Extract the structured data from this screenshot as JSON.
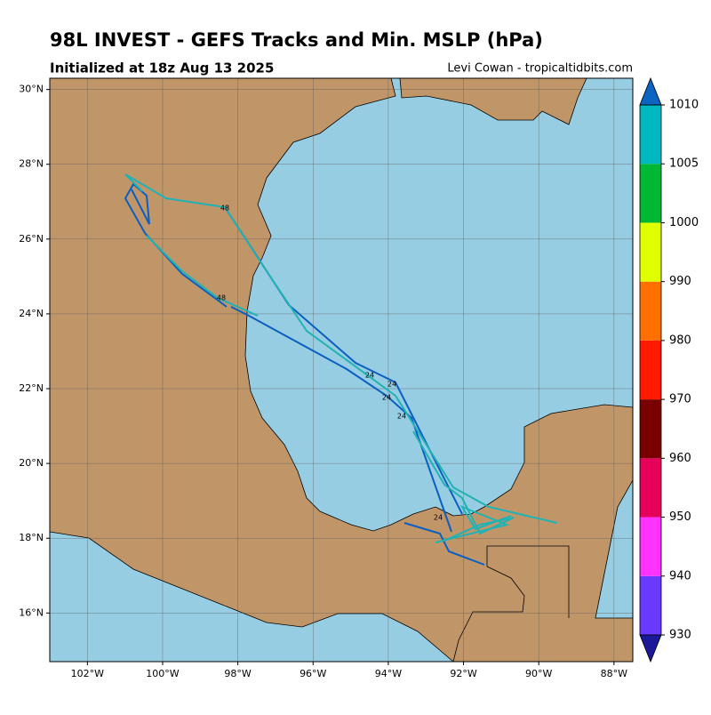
{
  "header": {
    "title": "98L INVEST - GEFS Tracks and Min. MSLP (hPa)",
    "subtitle": "Initialized at 18z Aug 13 2025",
    "credit": "Levi Cowan - tropicaltidbits.com"
  },
  "map": {
    "lonlim": [
      -103,
      -87.5
    ],
    "latlim": [
      14.7,
      30.3
    ],
    "lon_ticks": [
      {
        "value": -102,
        "label": "102°W"
      },
      {
        "value": -100,
        "label": "100°W"
      },
      {
        "value": -98,
        "label": "98°W"
      },
      {
        "value": -96,
        "label": "96°W"
      },
      {
        "value": -94,
        "label": "94°W"
      },
      {
        "value": -92,
        "label": "92°W"
      },
      {
        "value": -90,
        "label": "90°W"
      },
      {
        "value": -88,
        "label": "88°W"
      }
    ],
    "lat_ticks": [
      {
        "value": 16,
        "label": "16°N"
      },
      {
        "value": 18,
        "label": "18°N"
      },
      {
        "value": 20,
        "label": "20°N"
      },
      {
        "value": 22,
        "label": "22°N"
      },
      {
        "value": 24,
        "label": "24°N"
      },
      {
        "value": 26,
        "label": "26°N"
      },
      {
        "value": 28,
        "label": "28°N"
      },
      {
        "value": 30,
        "label": "30°N"
      }
    ],
    "annotations": [
      "48",
      "48",
      "24",
      "24",
      "24",
      "24",
      "24"
    ]
  },
  "colorbar": {
    "levels": [
      930,
      940,
      950,
      960,
      970,
      980,
      990,
      1000,
      1005,
      1010
    ],
    "colors": [
      "#6a3aff",
      "#ff33ff",
      "#e6005a",
      "#7a0000",
      "#ff1a00",
      "#ff7000",
      "#e0ff00",
      "#00b833",
      "#00b8c0"
    ],
    "under": "#1a1a99",
    "over": "#0a64c0"
  }
}
